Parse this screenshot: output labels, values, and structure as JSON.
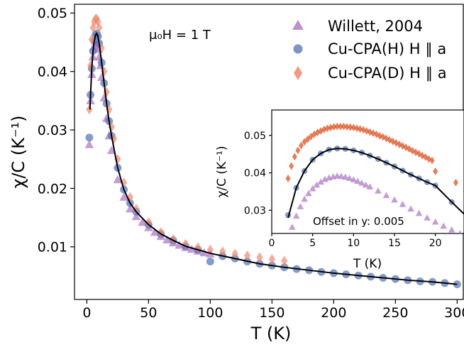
{
  "chart_data": [
    {
      "type": "scatter",
      "xlabel": "T (K)",
      "ylabel": "χ/C (K⁻¹)",
      "xlim": [
        -10,
        305
      ],
      "ylim": [
        0.001,
        0.0515
      ],
      "xticks": [
        0,
        50,
        100,
        150,
        200,
        250,
        300
      ],
      "yticks": [
        0.01,
        0.02,
        0.03,
        0.04,
        0.05
      ],
      "xtick_labels": [
        "0",
        "50",
        "100",
        "150",
        "200",
        "250",
        "300"
      ],
      "ytick_labels": [
        "0.01",
        "0.02",
        "0.03",
        "0.04",
        "0.05"
      ],
      "annotation": "μ₀H = 1 T",
      "legend_position": "top-right",
      "legend": [
        "Willett, 2004",
        "Cu-CPA(H) H ∥ a",
        "Cu-CPA(D) H ∥ a"
      ],
      "series": [
        {
          "name": "Willett, 2004",
          "marker": "triangle",
          "color": "#b07cc6",
          "x": [
            2,
            3,
            4,
            5,
            6,
            7,
            8,
            9,
            10,
            11,
            12,
            14,
            16,
            18,
            20,
            25,
            30,
            35,
            40,
            45,
            50,
            55,
            60,
            65,
            70,
            75,
            80,
            85,
            90,
            95,
            100
          ],
          "y": [
            0.0275,
            0.035,
            0.0395,
            0.0425,
            0.0442,
            0.0448,
            0.0446,
            0.0438,
            0.0425,
            0.041,
            0.039,
            0.0355,
            0.032,
            0.029,
            0.0265,
            0.0215,
            0.0185,
            0.0165,
            0.0152,
            0.0142,
            0.0133,
            0.0125,
            0.0118,
            0.0112,
            0.0107,
            0.0103,
            0.0099,
            0.0096,
            0.0093,
            0.009,
            0.0088
          ]
        },
        {
          "name": "Cu-CPA(H) H ∥ a",
          "marker": "circle",
          "color": "#5f79b6",
          "x": [
            2,
            3,
            4,
            5,
            6,
            7,
            8,
            9,
            10,
            12,
            14,
            16,
            18,
            20,
            25,
            30,
            35,
            40,
            50,
            60,
            70,
            80,
            90,
            100,
            110,
            120,
            130,
            140,
            150,
            160,
            170,
            180,
            190,
            200,
            210,
            220,
            230,
            240,
            250,
            260,
            270,
            280,
            290,
            300
          ],
          "y": [
            0.0287,
            0.036,
            0.0405,
            0.0435,
            0.0452,
            0.0462,
            0.0465,
            0.046,
            0.0448,
            0.0415,
            0.038,
            0.0345,
            0.0315,
            0.029,
            0.0235,
            0.0198,
            0.0175,
            0.016,
            0.0138,
            0.0122,
            0.0111,
            0.0101,
            0.0095,
            0.0075,
            0.0084,
            0.008,
            0.0075,
            0.0071,
            0.0068,
            0.0065,
            0.0062,
            0.006,
            0.0057,
            0.0055,
            0.0053,
            0.0051,
            0.0049,
            0.0047,
            0.0045,
            0.0043,
            0.0041,
            0.004,
            0.0038,
            0.0036
          ]
        },
        {
          "name": "Cu-CPA(D) H ∥ a",
          "marker": "diamond",
          "color": "#ec8a70",
          "x": [
            2,
            3,
            4,
            5,
            6,
            7,
            8,
            9,
            10,
            12,
            14,
            16,
            18,
            20,
            22,
            25,
            30,
            35,
            40,
            50,
            60,
            70,
            80,
            90,
            100,
            110,
            120,
            130,
            140,
            150,
            160
          ],
          "y": [
            0.0335,
            0.041,
            0.0455,
            0.0475,
            0.0485,
            0.049,
            0.049,
            0.0485,
            0.0475,
            0.044,
            0.04,
            0.0365,
            0.0335,
            0.0305,
            0.0285,
            0.025,
            0.021,
            0.0185,
            0.0165,
            0.0142,
            0.0125,
            0.0113,
            0.0105,
            0.0099,
            0.0095,
            0.0092,
            0.0088,
            0.0085,
            0.0082,
            0.0079,
            0.0076
          ]
        }
      ],
      "fit": {
        "color": "#000000",
        "x": [
          2.5,
          3,
          4,
          5,
          6,
          7,
          8,
          9,
          10,
          12,
          14,
          16,
          18,
          20,
          25,
          30,
          35,
          40,
          50,
          60,
          70,
          80,
          90,
          100,
          120,
          140,
          160,
          180,
          200,
          220,
          240,
          260,
          280,
          300
        ],
        "y": [
          0.0335,
          0.036,
          0.0405,
          0.0435,
          0.0452,
          0.0462,
          0.0465,
          0.046,
          0.0448,
          0.0415,
          0.038,
          0.0345,
          0.0315,
          0.029,
          0.0235,
          0.0198,
          0.0175,
          0.016,
          0.0138,
          0.0122,
          0.0111,
          0.0101,
          0.0095,
          0.0089,
          0.008,
          0.0071,
          0.0065,
          0.006,
          0.0055,
          0.0051,
          0.0047,
          0.0043,
          0.004,
          0.0036
        ]
      }
    },
    {
      "type": "scatter",
      "xlabel": "T (K)",
      "ylabel": "χ/C (K⁻¹)",
      "xlim": [
        0,
        23.5
      ],
      "ylim": [
        0.0238,
        0.0568
      ],
      "xticks": [
        0,
        5,
        10,
        15,
        20
      ],
      "yticks": [
        0.03,
        0.04,
        0.05
      ],
      "xtick_labels": [
        "0",
        "5",
        "10",
        "15",
        "20"
      ],
      "ytick_labels": [
        "0.03",
        "0.04",
        "0.05"
      ],
      "annotation": "Offset in y: 0.005",
      "series": [
        {
          "name": "Willett, 2004",
          "marker": "triangle",
          "color": "#b07cc6",
          "x": [
            2,
            2.5,
            3,
            3.5,
            4,
            4.5,
            5,
            5.5,
            6,
            6.5,
            7,
            7.5,
            8,
            8.5,
            9,
            9.5,
            10,
            10.5,
            11,
            11.5,
            12,
            13,
            14,
            15,
            16,
            17,
            18,
            19,
            20,
            21,
            22,
            23
          ],
          "y": [
            0.0225,
            0.0255,
            0.0285,
            0.031,
            0.033,
            0.0345,
            0.0358,
            0.0368,
            0.0376,
            0.0383,
            0.0387,
            0.039,
            0.0392,
            0.0391,
            0.0389,
            0.0386,
            0.0382,
            0.0378,
            0.0373,
            0.0368,
            0.0363,
            0.0352,
            0.034,
            0.0328,
            0.0316,
            0.0304,
            0.0292,
            0.028,
            0.0269,
            0.0258,
            0.0248,
            0.0238
          ]
        },
        {
          "name": "Cu-CPA(H) H ∥ a",
          "marker": "circle",
          "color": "#5f79b6",
          "x": [
            2,
            3,
            4,
            5,
            6,
            7,
            8,
            9,
            10,
            11,
            12,
            13,
            14,
            15,
            16,
            17,
            18,
            19,
            20,
            22
          ],
          "y": [
            0.0287,
            0.036,
            0.0405,
            0.0435,
            0.0452,
            0.0462,
            0.0465,
            0.0464,
            0.046,
            0.0454,
            0.0446,
            0.0437,
            0.0427,
            0.0417,
            0.0406,
            0.0395,
            0.0385,
            0.0375,
            0.0366,
            0.0322
          ]
        },
        {
          "name": "Cu-CPA(D) H ∥ a",
          "marker": "diamond",
          "color": "#d94818",
          "x": [
            2,
            2.4,
            2.8,
            3.2,
            3.6,
            4,
            4.4,
            4.8,
            5.2,
            5.6,
            6,
            6.4,
            6.8,
            7.2,
            7.6,
            8,
            8.4,
            8.8,
            9.2,
            9.6,
            10,
            10.4,
            10.8,
            11.2,
            11.6,
            12,
            12.4,
            12.8,
            13.2,
            13.6,
            14,
            14.4,
            14.8,
            15.2,
            15.6,
            16,
            16.4,
            16.8,
            17.2,
            17.6,
            18,
            18.4,
            18.8,
            19.2,
            19.6,
            20,
            22.5
          ],
          "y": [
            0.0385,
            0.0418,
            0.0443,
            0.046,
            0.0473,
            0.0483,
            0.049,
            0.0497,
            0.0503,
            0.0508,
            0.0512,
            0.0516,
            0.0519,
            0.0521,
            0.0523,
            0.0524,
            0.0524,
            0.0524,
            0.0523,
            0.0522,
            0.0521,
            0.0519,
            0.0517,
            0.0515,
            0.0512,
            0.0509,
            0.0506,
            0.0503,
            0.0499,
            0.0496,
            0.0492,
            0.0488,
            0.0484,
            0.048,
            0.0476,
            0.0472,
            0.0468,
            0.0464,
            0.0459,
            0.0455,
            0.0451,
            0.0446,
            0.0442,
            0.0437,
            0.0433,
            0.0404,
            0.0374
          ]
        }
      ],
      "fit": {
        "color": "#000000",
        "x": [
          2,
          3,
          4,
          5,
          6,
          7,
          8,
          9,
          10,
          11,
          12,
          13,
          14,
          15,
          16,
          17,
          18,
          19,
          20,
          21,
          22,
          23.5
        ],
        "y": [
          0.028,
          0.036,
          0.0405,
          0.0435,
          0.0452,
          0.0462,
          0.0465,
          0.0464,
          0.046,
          0.0454,
          0.0446,
          0.0437,
          0.0427,
          0.0417,
          0.0406,
          0.0395,
          0.0385,
          0.0375,
          0.0366,
          0.0344,
          0.0322,
          0.029
        ]
      }
    }
  ]
}
